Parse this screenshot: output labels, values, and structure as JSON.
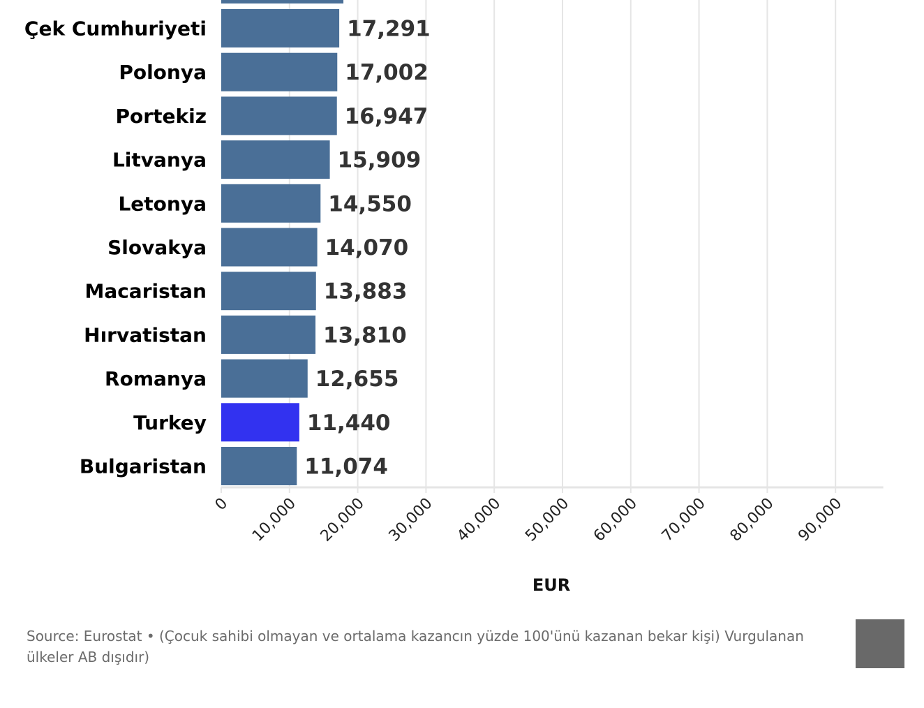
{
  "colors": {
    "bar": "#4a6f97",
    "highlight": "#3232f0",
    "grid": "#e5e5e5",
    "logo_box": "#696969"
  },
  "chart_data": {
    "type": "bar",
    "orientation": "horizontal",
    "categories": [
      "Çek Cumhuriyeti",
      "Polonya",
      "Portekiz",
      "Litvanya",
      "Letonya",
      "Slovakya",
      "Macaristan",
      "Hırvatistan",
      "Romanya",
      "Turkey",
      "Bulgaristan"
    ],
    "values": [
      17291,
      17002,
      16947,
      15909,
      14550,
      14070,
      13883,
      13810,
      12655,
      11440,
      11074
    ],
    "value_labels": [
      "17,291",
      "17,002",
      "16,947",
      "15,909",
      "14,550",
      "14,070",
      "13,883",
      "13,810",
      "12,655",
      "11,440",
      "11,074"
    ],
    "cut_off_bar_value": 17900,
    "highlight": [
      "Turkey"
    ],
    "xlabel": "EUR",
    "xlim": [
      0,
      97000
    ],
    "xticks": [
      0,
      10000,
      20000,
      30000,
      40000,
      50000,
      60000,
      70000,
      80000,
      90000
    ],
    "xtick_labels": [
      "0",
      "10,000",
      "20,000",
      "30,000",
      "40,000",
      "50,000",
      "60,000",
      "70,000",
      "80,000",
      "90,000"
    ],
    "grid": "vertical"
  },
  "footer": {
    "source": "Source: Eurostat • (Çocuk sahibi olmayan ve ortalama kazancın yüzde 100'ünü kazanan bekar kişi) Vurgulanan ülkeler AB dışıdır)"
  }
}
